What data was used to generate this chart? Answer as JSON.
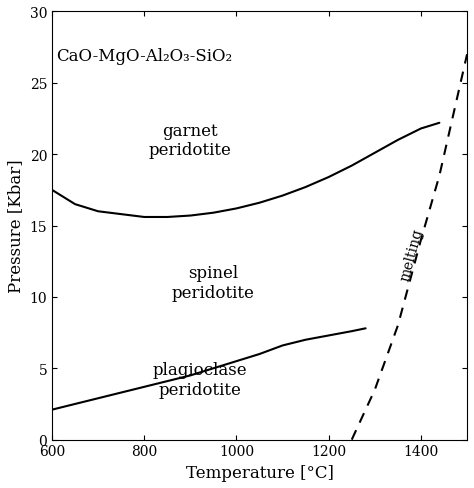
{
  "title": "CaO-MgO-Al₂O₃-SiO₂",
  "xlabel": "Temperature [°C]",
  "ylabel": "Pressure [Kbar]",
  "xlim": [
    600,
    1500
  ],
  "ylim": [
    0,
    30
  ],
  "xticks": [
    600,
    800,
    1000,
    1200,
    1400
  ],
  "yticks": [
    0,
    5,
    10,
    15,
    20,
    25,
    30
  ],
  "label_garnet": "garnet\nperidotite",
  "label_spinel": "spinel\nperidotite",
  "label_plagioclase": "plagioclase\nperidotite",
  "label_melting": "melting",
  "garnet_x": [
    600,
    650,
    700,
    750,
    800,
    850,
    900,
    950,
    1000,
    1050,
    1100,
    1150,
    1200,
    1250,
    1300,
    1350,
    1400,
    1440
  ],
  "garnet_y": [
    17.5,
    16.5,
    16.0,
    15.8,
    15.6,
    15.6,
    15.7,
    15.9,
    16.2,
    16.6,
    17.1,
    17.7,
    18.4,
    19.2,
    20.1,
    21.0,
    21.8,
    22.2
  ],
  "spinel_x": [
    600,
    650,
    700,
    750,
    800,
    850,
    900,
    950,
    1000,
    1050,
    1100,
    1150,
    1200,
    1250,
    1280
  ],
  "spinel_y": [
    2.1,
    2.5,
    2.9,
    3.3,
    3.7,
    4.1,
    4.5,
    5.0,
    5.5,
    6.0,
    6.6,
    7.0,
    7.3,
    7.6,
    7.8
  ],
  "melting_x": [
    1250,
    1300,
    1350,
    1400,
    1440,
    1500
  ],
  "melting_y": [
    0,
    3.5,
    8.0,
    14.0,
    18.5,
    27.0
  ],
  "background_color": "#ffffff",
  "line_color": "#000000",
  "fontsize_labels": 12,
  "fontsize_title": 12,
  "fontsize_region": 12
}
